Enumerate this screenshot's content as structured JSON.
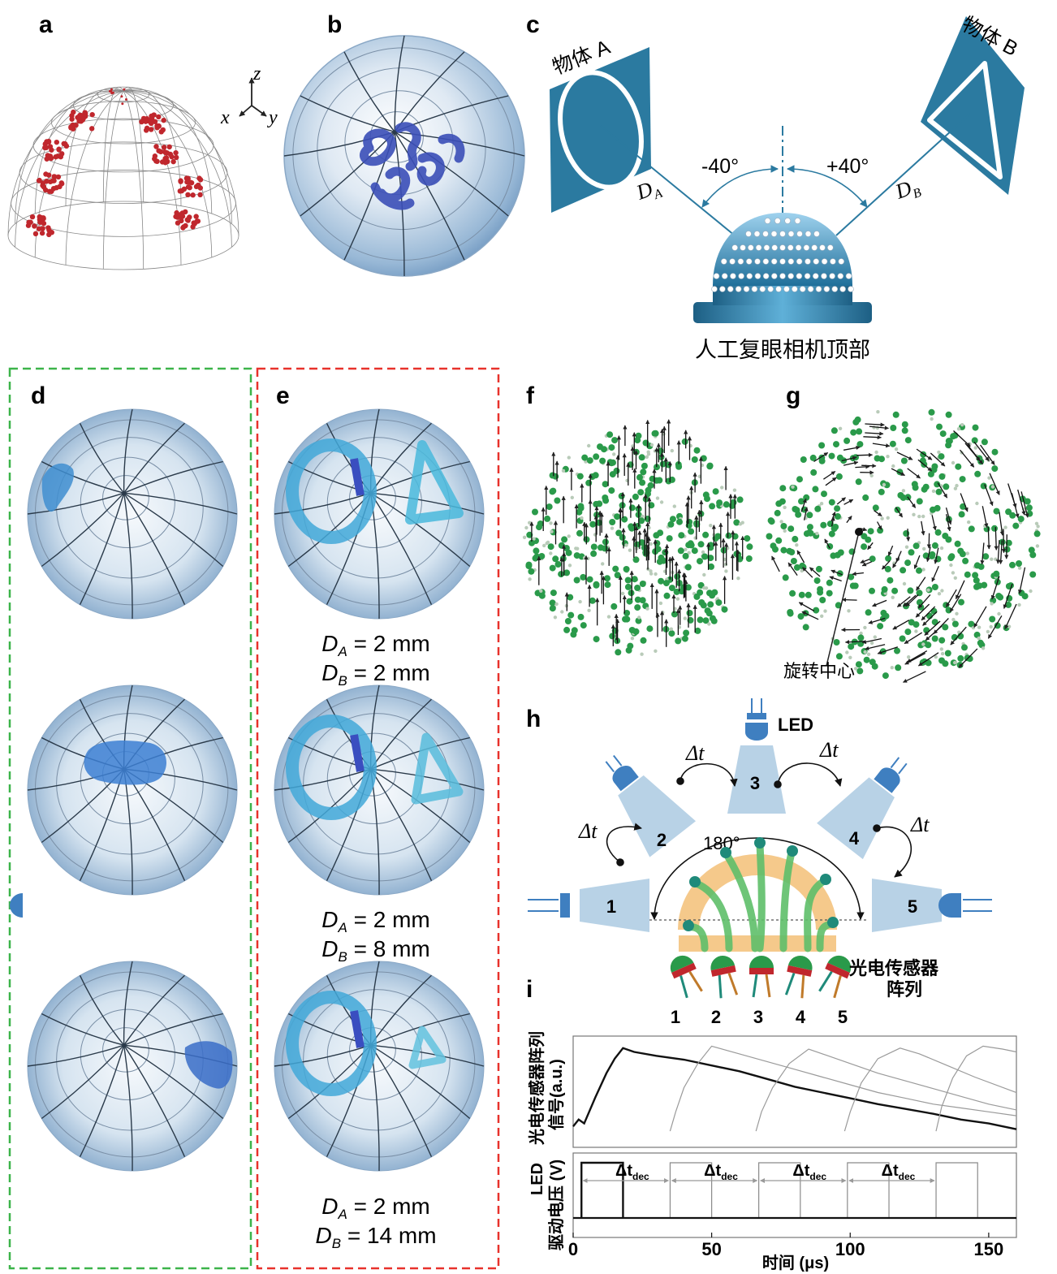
{
  "panel_labels": [
    "a",
    "b",
    "c",
    "d",
    "e",
    "f",
    "g",
    "h",
    "i"
  ],
  "panel_a": {
    "axes": {
      "z": "z",
      "x": "x",
      "y": "y"
    }
  },
  "panel_c": {
    "object_a": "物体 A",
    "object_b": "物体 B",
    "angle_left": "-40°",
    "angle_right": "+40°",
    "dist_a": "D",
    "dist_a_sub": "A",
    "dist_b": "D",
    "dist_b_sub": "B",
    "camera_label": "人工复眼相机顶部"
  },
  "panel_e": {
    "captions": [
      {
        "da": "D_A = 2 mm",
        "db": "D_B = 2 mm"
      },
      {
        "da": "D_A = 2 mm",
        "db": "D_B = 8 mm"
      },
      {
        "da": "D_A = 2 mm",
        "db": "D_B = 14 mm"
      }
    ]
  },
  "panel_g": {
    "center_label": "旋转中心"
  },
  "panel_h": {
    "led_label": "LED",
    "led_numbers": [
      "1",
      "2",
      "3",
      "4",
      "5"
    ],
    "delta_t": "Δt",
    "angle": "180°",
    "sensor_label_line1": "光电传感器",
    "sensor_label_line2": "阵列",
    "sensor_numbers": [
      "1",
      "2",
      "3",
      "4",
      "5"
    ]
  },
  "panel_i": {
    "top_ylabel_line1": "光电传感器阵列",
    "top_ylabel_line2": "信号(a.u.)",
    "bottom_ylabel_line1": "LED",
    "bottom_ylabel_line2": "驱动电压 (V)",
    "xlabel": "时间 (μs)",
    "xticks": [
      "0",
      "50",
      "100",
      "150"
    ],
    "dt_dec_main": "Δt",
    "dt_dec_sub": "dec"
  },
  "colors": {
    "green_box": "#3cb44a",
    "red_box": "#e8322c",
    "steel_blue": "#2b7aa0",
    "sphere_blue": "#8fb5d6",
    "led_body": "#b8d2e6",
    "fiber_green": "#5fbf6a",
    "arc_orange": "#f5c98b"
  },
  "chart_data": {
    "type": "line",
    "xlabel": "时间 (μs)",
    "xlim": [
      0,
      160
    ],
    "xticks": [
      0,
      50,
      100,
      150
    ],
    "subplots": [
      {
        "ylabel": "光电传感器阵列 信号(a.u.)",
        "series": [
          {
            "x": [
              0,
              2,
              4,
              8,
              12,
              15,
              18,
              22,
              30,
              40,
              50,
              60,
              70,
              80,
              90,
              100,
              110,
              120,
              130,
              140,
              150,
              160
            ],
            "y": [
              0.15,
              0.22,
              0.18,
              0.45,
              0.7,
              0.85,
              0.96,
              0.92,
              0.88,
              0.84,
              0.78,
              0.72,
              0.64,
              0.56,
              0.5,
              0.44,
              0.38,
              0.33,
              0.28,
              0.22,
              0.18,
              0.12
            ]
          },
          {
            "x": [
              35,
              37,
              40,
              45,
              50,
              60,
              70,
              80,
              90,
              100,
              110,
              120,
              130,
              140,
              150,
              160
            ],
            "y": [
              0.1,
              0.3,
              0.55,
              0.8,
              0.98,
              0.9,
              0.82,
              0.74,
              0.66,
              0.58,
              0.5,
              0.44,
              0.38,
              0.34,
              0.3,
              0.26
            ]
          },
          {
            "x": [
              66,
              68,
              72,
              78,
              85,
              90,
              100,
              110,
              120,
              130,
              140,
              150,
              160
            ],
            "y": [
              0.1,
              0.3,
              0.55,
              0.8,
              0.95,
              0.9,
              0.8,
              0.7,
              0.62,
              0.54,
              0.46,
              0.38,
              0.32
            ]
          },
          {
            "x": [
              98,
              100,
              104,
              110,
              118,
              125,
              135,
              145,
              160
            ],
            "y": [
              0.1,
              0.3,
              0.6,
              0.85,
              0.96,
              0.9,
              0.78,
              0.66,
              0.5
            ]
          },
          {
            "x": [
              131,
              133,
              137,
              142,
              148,
              155,
              160
            ],
            "y": [
              0.1,
              0.35,
              0.65,
              0.88,
              0.98,
              0.95,
              0.92
            ]
          }
        ]
      },
      {
        "ylabel": "LED 驱动电压 (V)",
        "pulses": [
          {
            "start": 3,
            "end": 18,
            "level": 1.0
          },
          {
            "start": 35,
            "end": 50,
            "level": 1.0
          },
          {
            "start": 67,
            "end": 82,
            "level": 1.0
          },
          {
            "start": 99,
            "end": 114,
            "level": 1.0
          },
          {
            "start": 131,
            "end": 146,
            "level": 1.0
          }
        ],
        "annotations": [
          "Δt_dec",
          "Δt_dec",
          "Δt_dec",
          "Δt_dec"
        ]
      }
    ]
  }
}
